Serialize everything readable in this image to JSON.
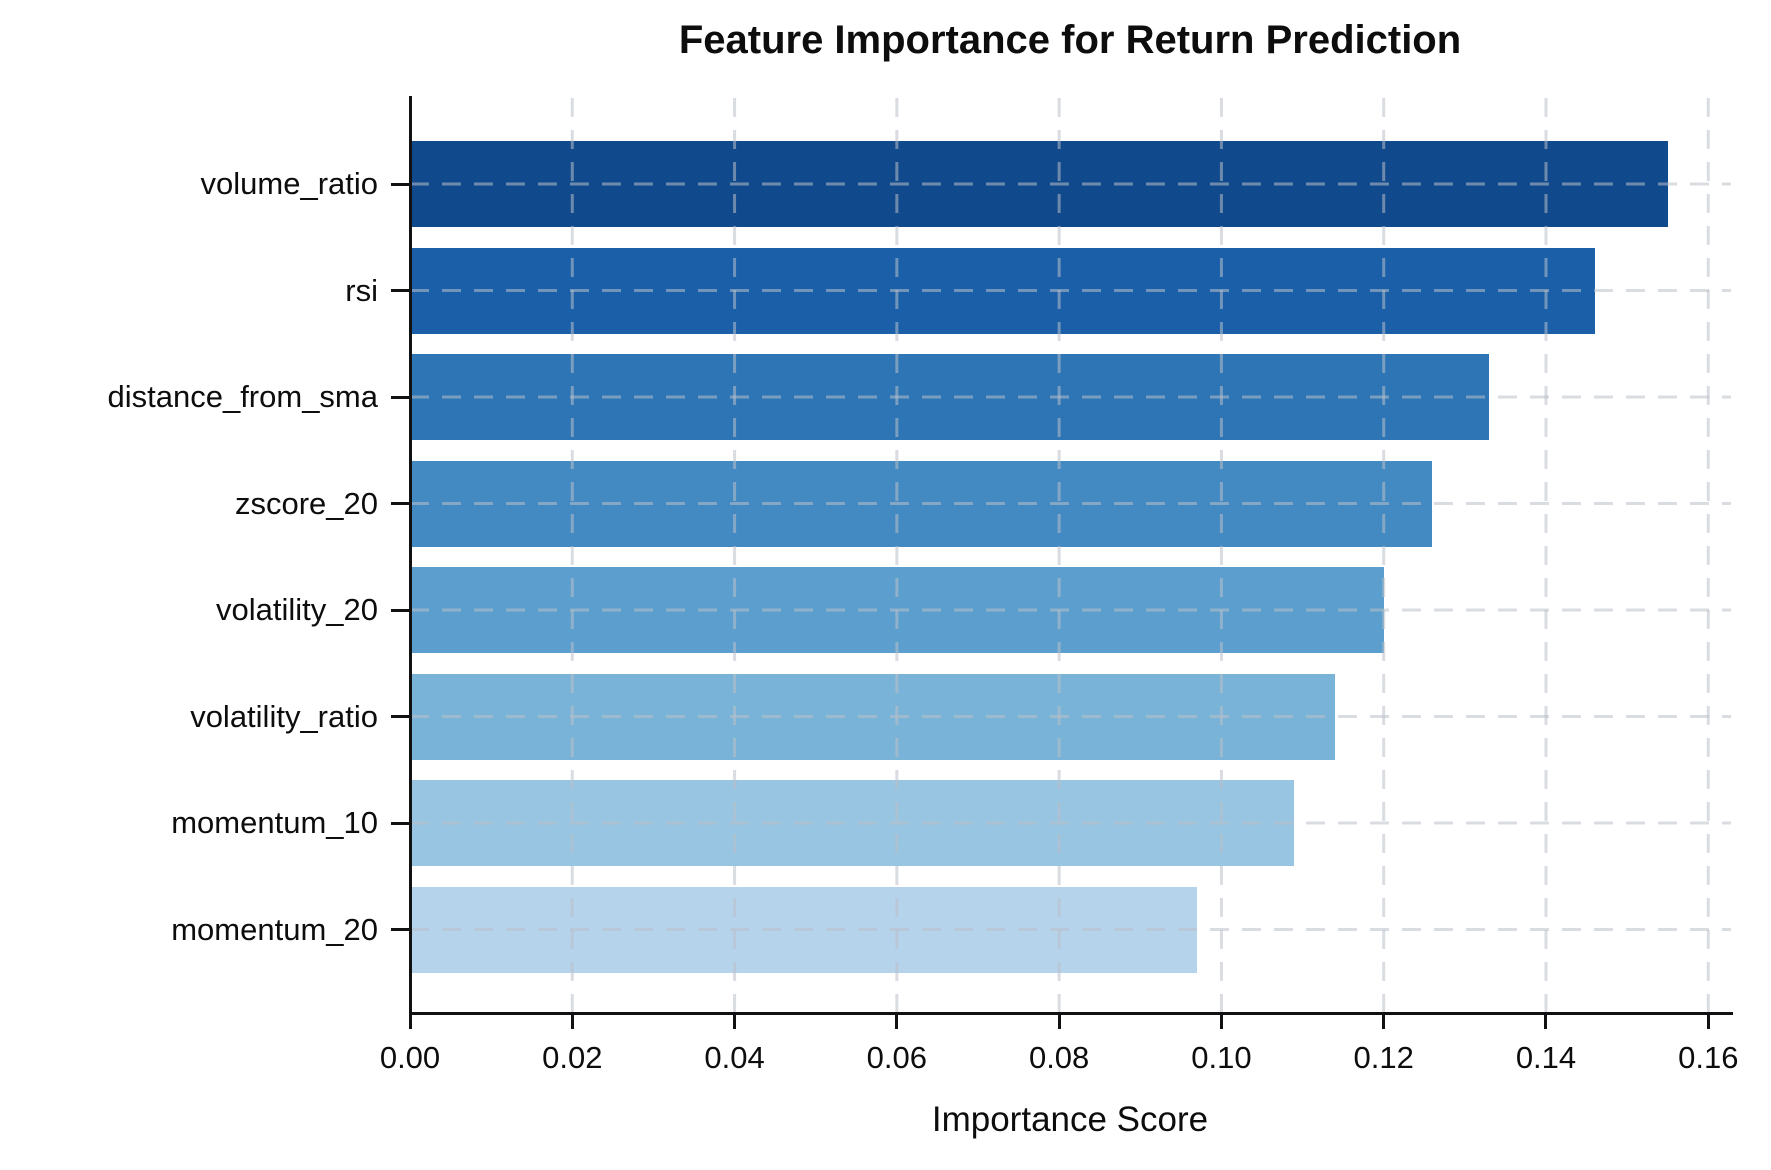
{
  "chart_data": {
    "type": "bar",
    "orientation": "horizontal",
    "title": "Feature Importance for Return Prediction",
    "xlabel": "Importance Score",
    "ylabel": "",
    "categories": [
      "volume_ratio",
      "rsi",
      "distance_from_sma",
      "zscore_20",
      "volatility_20",
      "volatility_ratio",
      "momentum_10",
      "momentum_20"
    ],
    "values": [
      0.155,
      0.146,
      0.133,
      0.126,
      0.12,
      0.114,
      0.109,
      0.097
    ],
    "bar_colors": [
      "#11498d",
      "#1a5fa8",
      "#2e75b5",
      "#448ac2",
      "#5c9fce",
      "#7ab3d8",
      "#98c5e1",
      "#b5d3ea"
    ],
    "xlim": [
      0,
      0.1628
    ],
    "xticks": [
      0.0,
      0.02,
      0.04,
      0.06,
      0.08,
      0.1,
      0.12,
      0.14,
      0.16
    ],
    "xtick_labels": [
      "0.00",
      "0.02",
      "0.04",
      "0.06",
      "0.08",
      "0.10",
      "0.12",
      "0.14",
      "0.16"
    ],
    "grid": true,
    "grid_style": "dashed",
    "grid_color": "#b9c0c8",
    "grid_opacity": 0.55,
    "spine_color": "#111111",
    "background": "#ffffff",
    "text_color": "#0d0d0d",
    "legend": null
  }
}
